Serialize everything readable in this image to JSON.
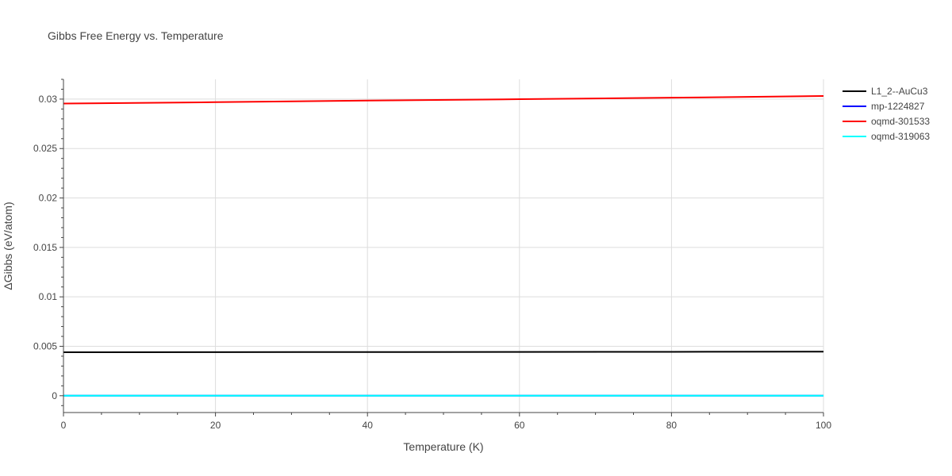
{
  "chart_data": {
    "type": "line",
    "title": "Gibbs Free Energy vs. Temperature",
    "xlabel": "Temperature (K)",
    "ylabel": "ΔGibbs (eV/atom)",
    "xlim": [
      0,
      100
    ],
    "ylim": [
      -0.0017,
      0.032
    ],
    "xticks": [
      0,
      20,
      40,
      60,
      80,
      100
    ],
    "xtick_labels": [
      "0",
      "20",
      "40",
      "60",
      "80",
      "100"
    ],
    "yticks": [
      0,
      0.005,
      0.01,
      0.015,
      0.02,
      0.025,
      0.03
    ],
    "ytick_labels": [
      "0",
      "0.005",
      "0.01",
      "0.015",
      "0.02",
      "0.025",
      "0.03"
    ],
    "grid": true,
    "legend_position": "top-right outside",
    "series": [
      {
        "name": "L1_2--AuCu3",
        "color": "#000000",
        "x": [
          0,
          20,
          40,
          60,
          80,
          100
        ],
        "y": [
          0.0044,
          0.00441,
          0.00442,
          0.00443,
          0.00444,
          0.00446
        ]
      },
      {
        "name": "mp-1224827",
        "color": "#0000ff",
        "x": [
          0,
          20,
          40,
          60,
          80,
          100
        ],
        "y": [
          0,
          0,
          0,
          0,
          0,
          0
        ]
      },
      {
        "name": "oqmd-301533",
        "color": "#ff0000",
        "x": [
          0,
          20,
          40,
          60,
          80,
          100
        ],
        "y": [
          0.02955,
          0.02969,
          0.02985,
          0.02999,
          0.03014,
          0.03031
        ]
      },
      {
        "name": "oqmd-319063",
        "color": "#00ffff",
        "x": [
          0,
          20,
          40,
          60,
          80,
          100
        ],
        "y": [
          0,
          0,
          0,
          0,
          0,
          0
        ]
      }
    ]
  }
}
